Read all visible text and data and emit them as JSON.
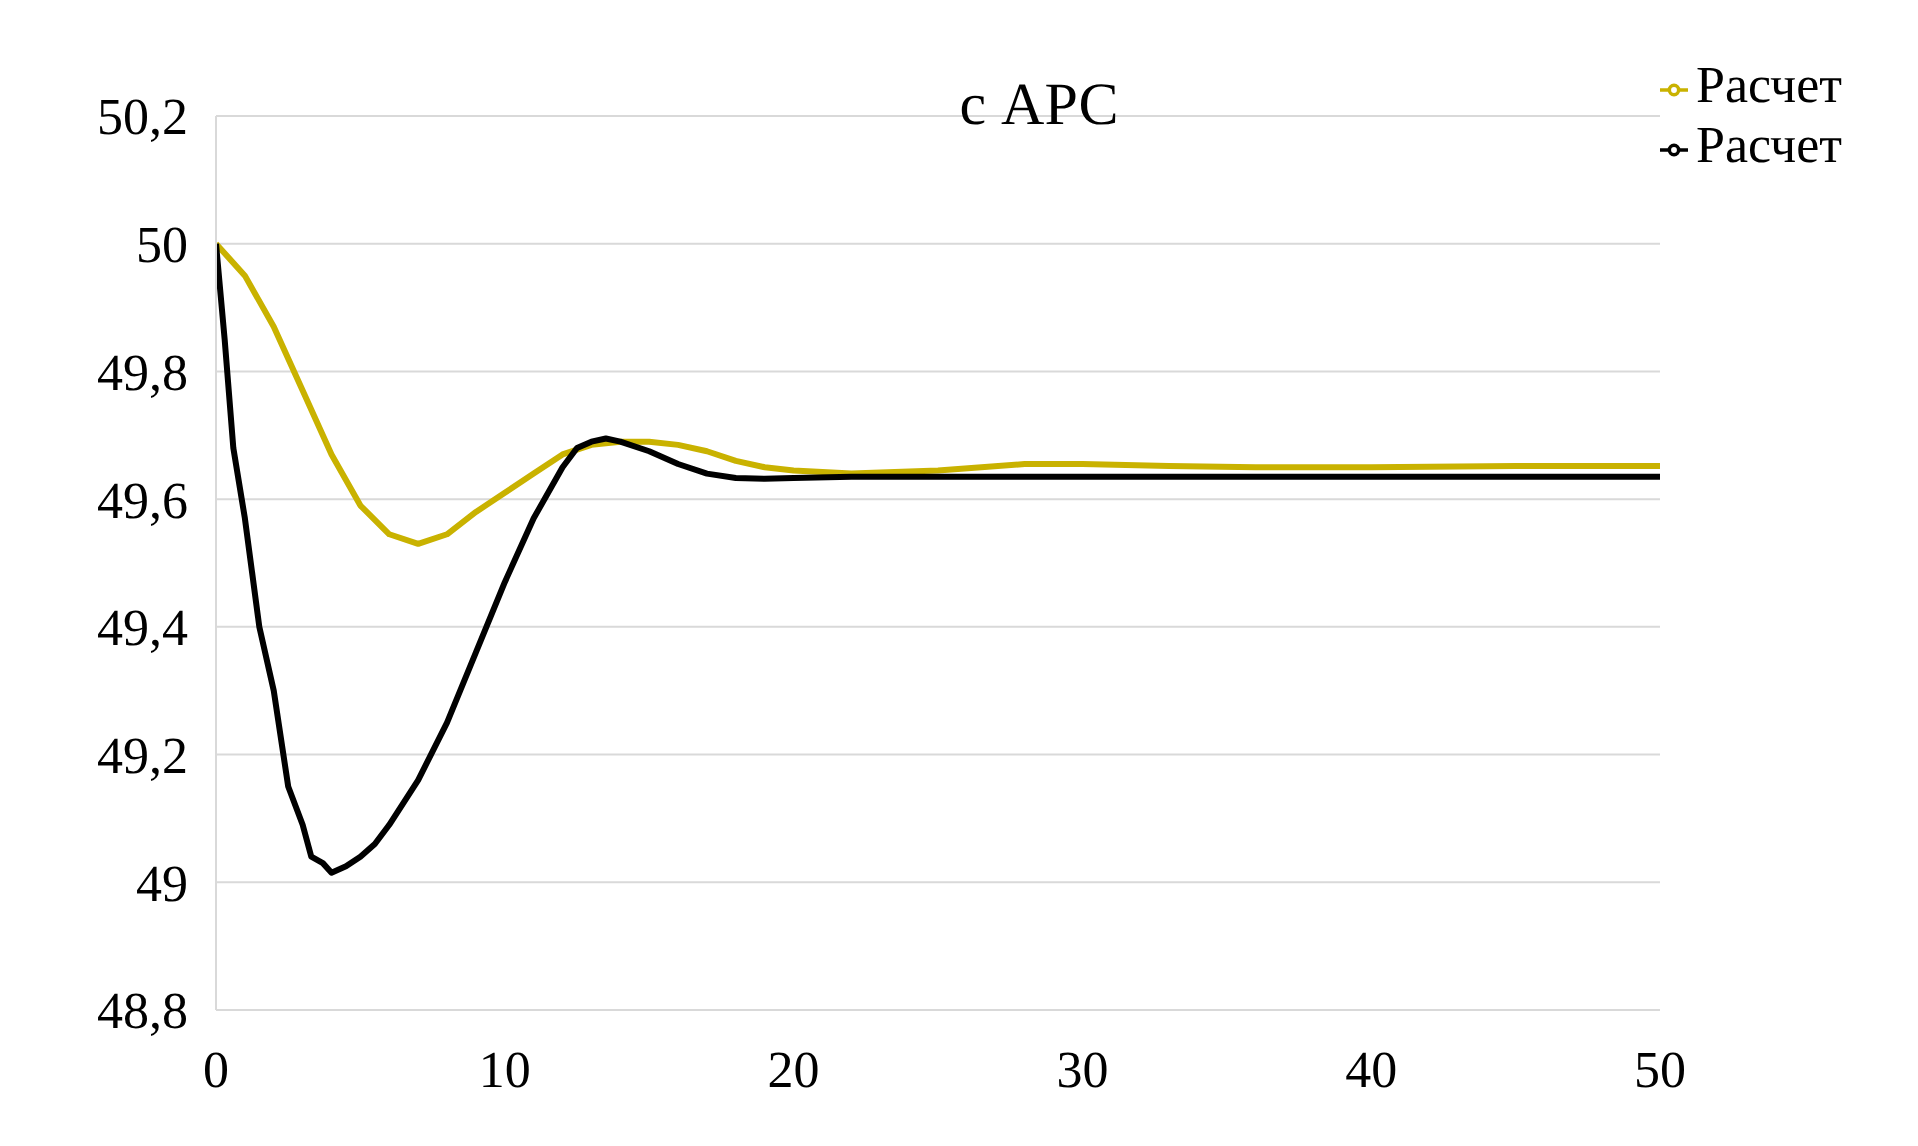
{
  "chart_data": {
    "type": "line",
    "title": "с АРС",
    "xlim": [
      0,
      50
    ],
    "xticks": [
      0,
      10,
      20,
      30,
      40,
      50
    ],
    "ylim": [
      48.8,
      50.2
    ],
    "yticks": [
      {
        "value": 48.8,
        "label": "48,8"
      },
      {
        "value": 49,
        "label": "49"
      },
      {
        "value": 49.2,
        "label": "49,2"
      },
      {
        "value": 49.4,
        "label": "49,4"
      },
      {
        "value": 49.6,
        "label": "49,6"
      },
      {
        "value": 49.8,
        "label": "49,8"
      },
      {
        "value": 50,
        "label": "50"
      },
      {
        "value": 50.2,
        "label": "50,2"
      }
    ],
    "grid": "y",
    "legend": "top right",
    "marker": "none",
    "line_style": "solid",
    "series": [
      {
        "name": "Расчет",
        "color": "#c9b200",
        "x": [
          0,
          1,
          2,
          3,
          4,
          5,
          6,
          7,
          8,
          9,
          10,
          11,
          12,
          13,
          14,
          15,
          16,
          17,
          18,
          19,
          20,
          22,
          25,
          28,
          30,
          33,
          36,
          40,
          45,
          50
        ],
        "values": [
          50,
          49.95,
          49.87,
          49.77,
          49.67,
          49.59,
          49.545,
          49.53,
          49.545,
          49.58,
          49.61,
          49.64,
          49.67,
          49.685,
          49.69,
          49.69,
          49.685,
          49.675,
          49.66,
          49.65,
          49.645,
          49.64,
          49.645,
          49.655,
          49.655,
          49.652,
          49.65,
          49.65,
          49.652,
          49.652
        ]
      },
      {
        "name": "Расчет",
        "color": "#000000",
        "x": [
          0,
          0.3,
          0.6,
          1,
          1.5,
          2,
          2.5,
          3,
          3.3,
          3.7,
          4,
          4.5,
          5,
          5.5,
          6,
          7,
          8,
          9,
          10,
          11,
          12,
          12.5,
          13,
          13.5,
          14,
          15,
          16,
          17,
          18,
          19,
          20,
          22,
          25,
          30,
          40,
          50
        ],
        "values": [
          50,
          49.85,
          49.68,
          49.57,
          49.4,
          49.3,
          49.15,
          49.09,
          49.04,
          49.03,
          49.015,
          49.025,
          49.04,
          49.06,
          49.09,
          49.16,
          49.25,
          49.36,
          49.47,
          49.57,
          49.65,
          49.68,
          49.69,
          49.695,
          49.69,
          49.675,
          49.655,
          49.64,
          49.633,
          49.632,
          49.633,
          49.635,
          49.635,
          49.635,
          49.635,
          49.635
        ]
      }
    ]
  }
}
